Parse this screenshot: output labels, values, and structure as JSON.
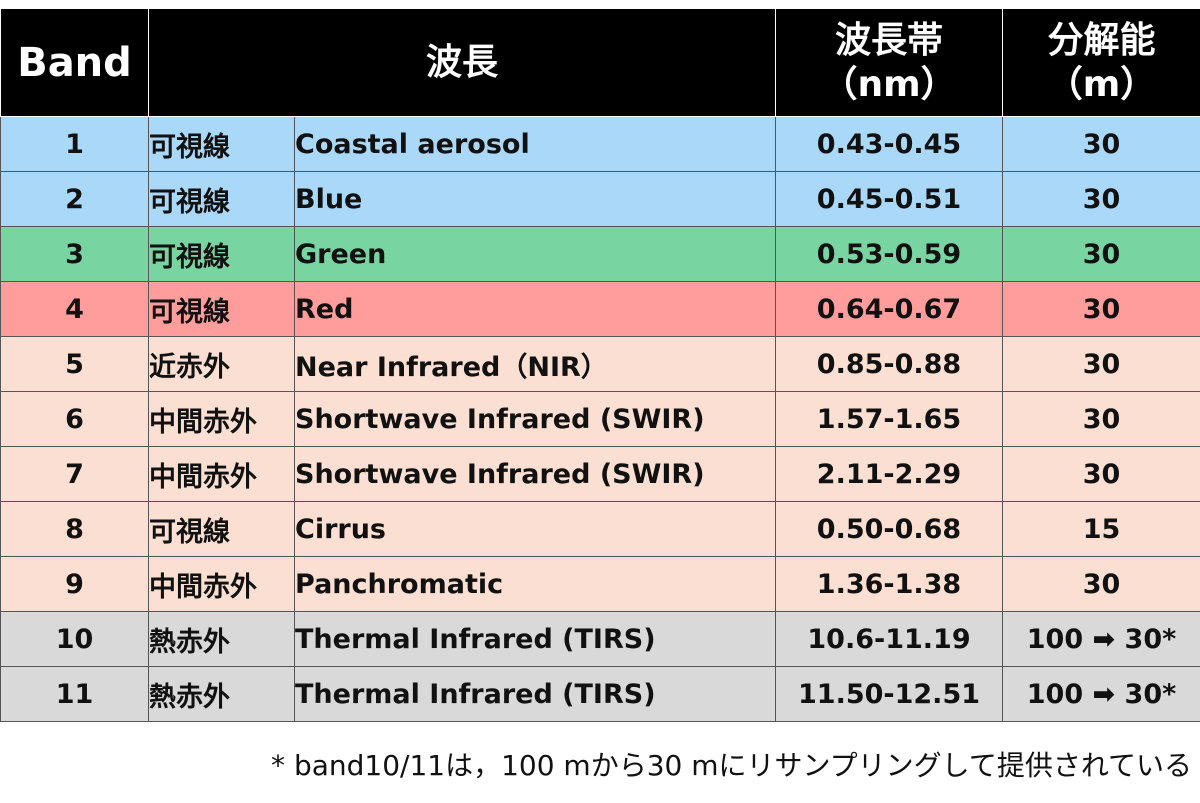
{
  "header": {
    "band": "Band",
    "wavelength": "波長",
    "wavelength_band_line1": "波長帯",
    "wavelength_band_line2": "（nm）",
    "resolution_line1": "分解能",
    "resolution_line2": "（m）"
  },
  "rows": [
    {
      "band": "1",
      "type": "可視線",
      "name": "Coastal aerosol",
      "range": "0.43-0.45",
      "resolution": "30"
    },
    {
      "band": "2",
      "type": "可視線",
      "name": "Blue",
      "range": "0.45-0.51",
      "resolution": "30"
    },
    {
      "band": "3",
      "type": "可視線",
      "name": "Green",
      "range": "0.53-0.59",
      "resolution": "30"
    },
    {
      "band": "4",
      "type": "可視線",
      "name": "Red",
      "range": "0.64-0.67",
      "resolution": "30"
    },
    {
      "band": "5",
      "type": "近赤外",
      "name": "Near Infrared（NIR）",
      "range": "0.85-0.88",
      "resolution": "30"
    },
    {
      "band": "6",
      "type": "中間赤外",
      "name": "Shortwave Infrared (SWIR)",
      "range": "1.57-1.65",
      "resolution": "30"
    },
    {
      "band": "7",
      "type": "中間赤外",
      "name": "Shortwave Infrared (SWIR)",
      "range": "2.11-2.29",
      "resolution": "30"
    },
    {
      "band": "8",
      "type": "可視線",
      "name": "Cirrus",
      "range": "0.50-0.68",
      "resolution": "15"
    },
    {
      "band": "9",
      "type": "中間赤外",
      "name": "Panchromatic",
      "range": "1.36-1.38",
      "resolution": "30"
    },
    {
      "band": "10",
      "type": "熱赤外",
      "name": "Thermal Infrared (TIRS)",
      "range": "10.6-11.19",
      "resolution": "100 ➡ 30*"
    },
    {
      "band": "11",
      "type": "熱赤外",
      "name": "Thermal Infrared (TIRS)",
      "range": "11.50-12.51",
      "resolution": "100 ➡ 30*"
    }
  ],
  "row_colors": {
    "blue": "#aad8f8",
    "green": "#78d4a0",
    "red": "#ff9c9c",
    "peach": "#fbdfd2",
    "gray": "#d9d9d9",
    "header": "#000000"
  },
  "footnote": "* band10/11は，100 mから30 mにリサンプリングして提供されている"
}
